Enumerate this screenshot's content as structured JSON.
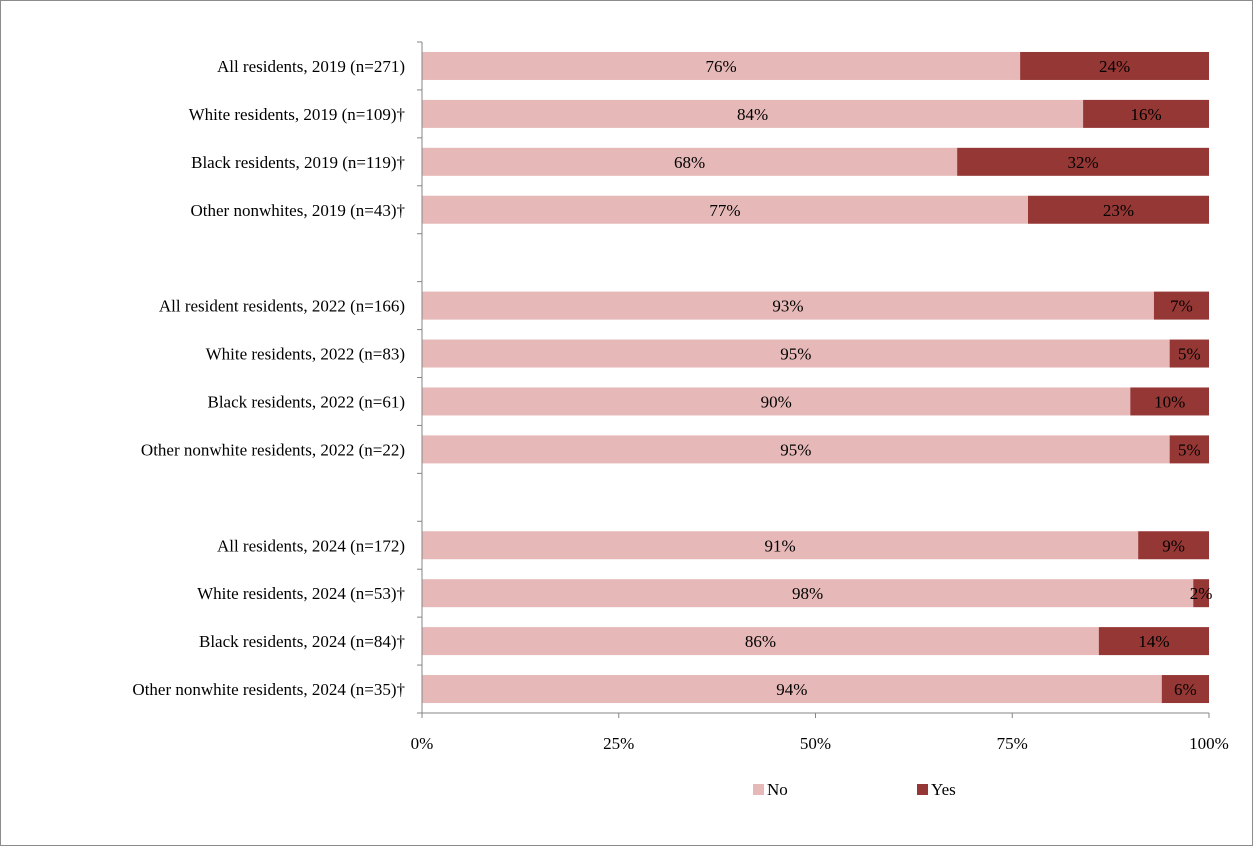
{
  "chart_data": {
    "type": "bar",
    "orientation": "horizontal",
    "stacked": true,
    "categories": [
      "All residents, 2019 (n=271)",
      "White residents, 2019 (n=109)†",
      "Black residents, 2019 (n=119)†",
      "Other nonwhites, 2019 (n=43)†",
      "",
      "All resident residents, 2022 (n=166)",
      "White residents, 2022 (n=83)",
      "Black residents, 2022 (n=61)",
      "Other nonwhite residents, 2022 (n=22)",
      "",
      "All residents, 2024 (n=172)",
      "White residents, 2024 (n=53)†",
      "Black  residents, 2024 (n=84)†",
      "Other nonwhite residents, 2024 (n=35)†"
    ],
    "series": [
      {
        "name": "No",
        "color": "#e6b9b8",
        "values": [
          76,
          84,
          68,
          77,
          null,
          93,
          95,
          90,
          95,
          null,
          91,
          98,
          86,
          94
        ],
        "labels": [
          "76%",
          "84%",
          "68%",
          "77%",
          "",
          "93%",
          "95%",
          "90%",
          "95%",
          "",
          "91%",
          "98%",
          "86%",
          "94%"
        ]
      },
      {
        "name": "Yes",
        "color": "#953735",
        "values": [
          24,
          16,
          32,
          23,
          null,
          7,
          5,
          10,
          5,
          null,
          9,
          2,
          14,
          6
        ],
        "labels": [
          "24%",
          "16%",
          "32%",
          "23%",
          "",
          "7%",
          "5%",
          "10%",
          "5%",
          "",
          "9%",
          "2%",
          "14%",
          "6%"
        ]
      }
    ],
    "xlim": [
      0,
      100
    ],
    "xticks": [
      "0%",
      "25%",
      "50%",
      "75%",
      "100%"
    ],
    "xtick_values": [
      0,
      25,
      50,
      75,
      100
    ],
    "title": "",
    "xlabel": "",
    "ylabel": "",
    "grid": false,
    "legend": "bottom"
  }
}
